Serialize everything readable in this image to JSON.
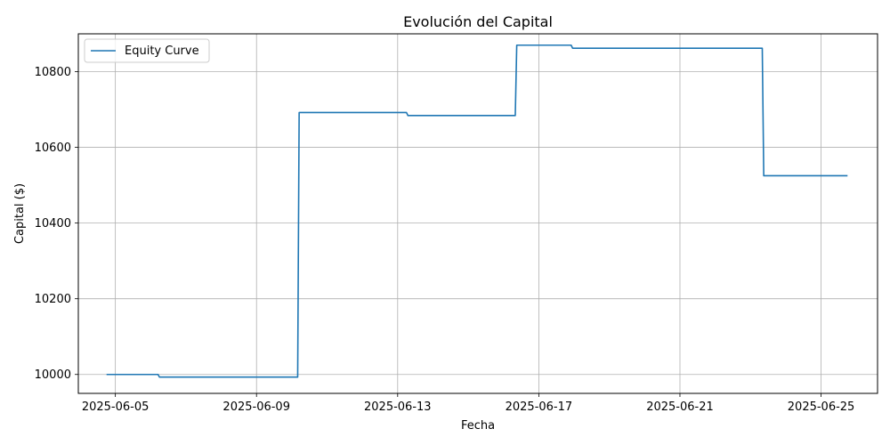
{
  "chart_data": {
    "type": "line",
    "title": "Evolución del Capital",
    "xlabel": "Fecha",
    "ylabel": "Capital ($)",
    "grid": true,
    "legend_position": "upper-left",
    "x_type": "date",
    "xlim": [
      "2025-06-03T22:48",
      "2025-06-26T14:24"
    ],
    "ylim": [
      9950,
      10900
    ],
    "x_ticks": [
      "2025-06-05",
      "2025-06-09",
      "2025-06-13",
      "2025-06-17",
      "2025-06-21",
      "2025-06-25"
    ],
    "y_ticks": [
      10000,
      10200,
      10400,
      10600,
      10800
    ],
    "series": [
      {
        "name": "Equity Curve",
        "color": "#1f77b4",
        "x": [
          "2025-06-04T18:00",
          "2025-06-06T05:00",
          "2025-06-06T06:00",
          "2025-06-10T04:00",
          "2025-06-10T05:00",
          "2025-06-13T06:00",
          "2025-06-13T07:00",
          "2025-06-16T08:00",
          "2025-06-16T09:00",
          "2025-06-17T22:00",
          "2025-06-17T23:00",
          "2025-06-23T08:00",
          "2025-06-23T09:00",
          "2025-06-25T18:00"
        ],
        "y": [
          10000,
          10000,
          9993,
          9993,
          10692,
          10692,
          10684,
          10684,
          10870,
          10870,
          10862,
          10862,
          10525,
          10525
        ]
      }
    ]
  }
}
